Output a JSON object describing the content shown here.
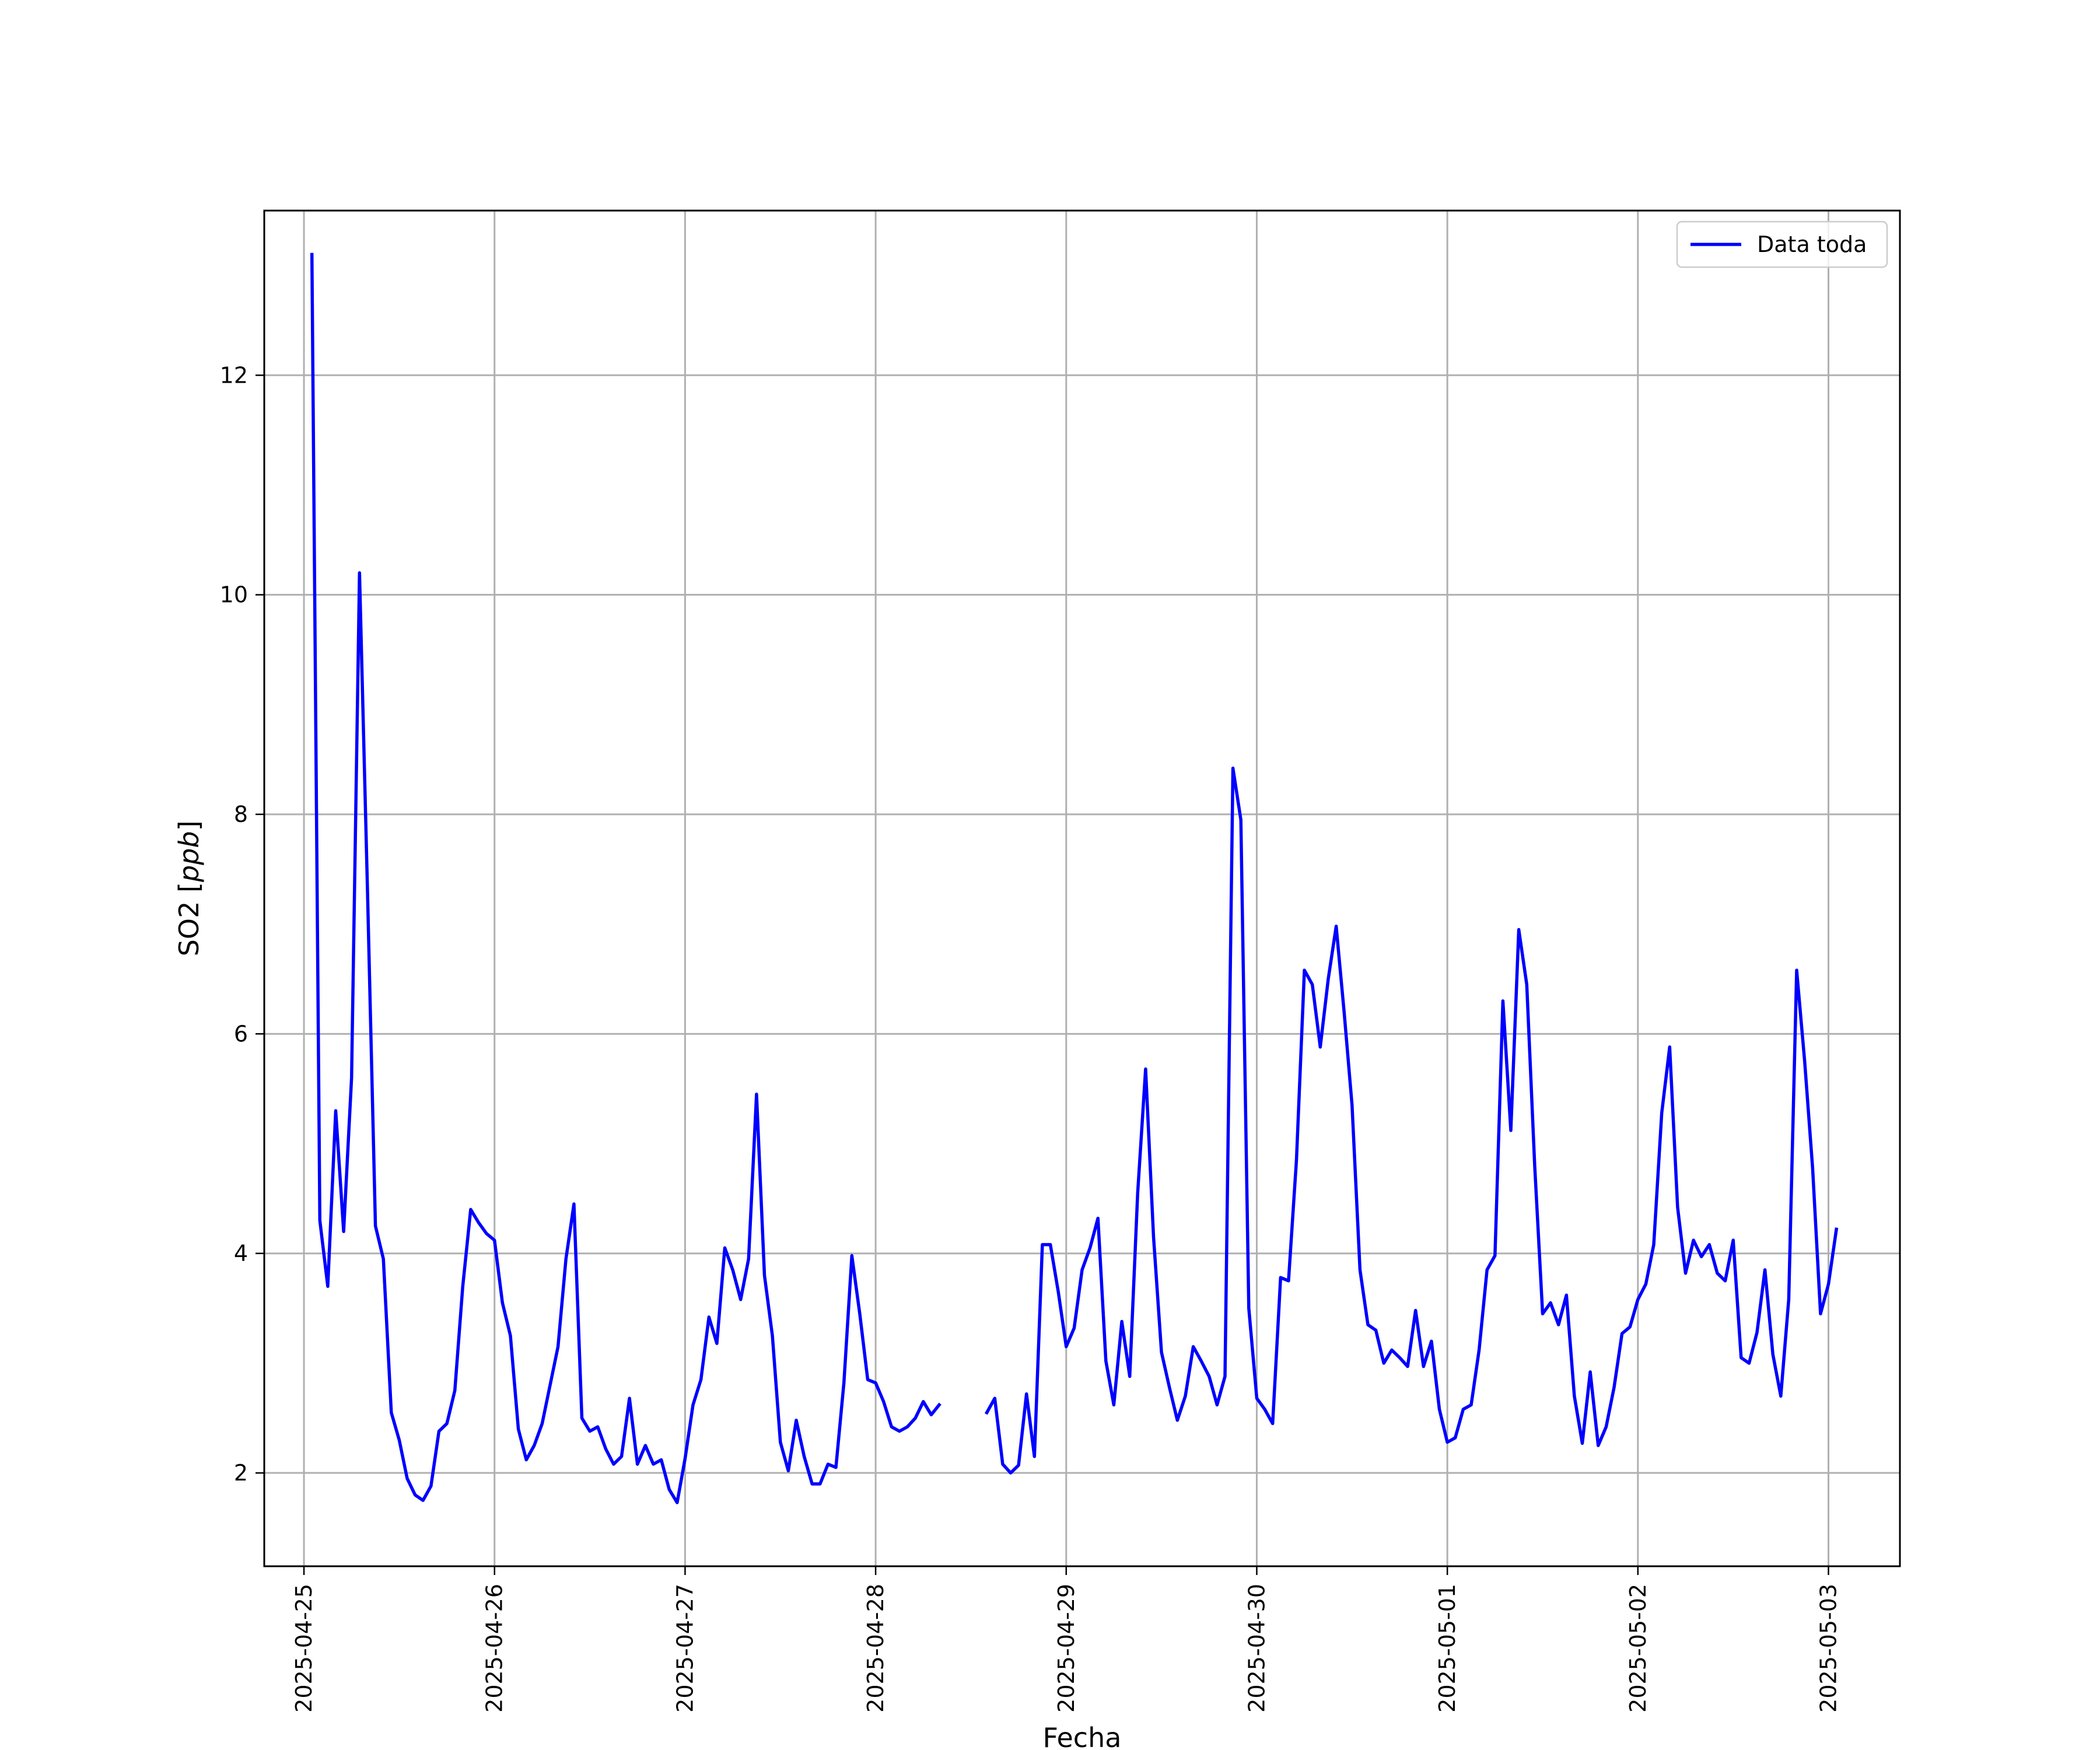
{
  "chart_data": {
    "type": "line",
    "title": "",
    "xlabel": "Fecha",
    "ylabel": "SO2 [ppb]",
    "ylabel_parts": {
      "plain": "SO2 [",
      "italic": "ppb",
      "close": "]"
    },
    "xlim": [
      "2025-04-24T19:00",
      "2025-05-03T09:00"
    ],
    "ylim": [
      1.15,
      13.5
    ],
    "x_ticks": [
      "2025-04-25",
      "2025-04-26",
      "2025-04-27",
      "2025-04-28",
      "2025-04-29",
      "2025-04-30",
      "2025-05-01",
      "2025-05-02",
      "2025-05-03"
    ],
    "y_ticks": [
      2,
      4,
      6,
      8,
      10,
      12
    ],
    "y_tick_labels": [
      "2",
      "4",
      "6",
      "8",
      "10",
      "12"
    ],
    "grid": true,
    "legend": {
      "position": "top-right"
    },
    "series": [
      {
        "name": "Data toda",
        "color": "#0000ff",
        "start": "2025-04-25T01:00",
        "interval_hours": 1,
        "values": [
          13.1,
          4.3,
          3.7,
          5.3,
          4.2,
          5.6,
          10.2,
          7.3,
          4.25,
          3.95,
          2.55,
          2.3,
          1.95,
          1.8,
          1.75,
          1.88,
          2.38,
          2.45,
          2.75,
          3.7,
          4.4,
          4.28,
          4.18,
          4.12,
          3.55,
          3.25,
          2.4,
          2.12,
          2.25,
          2.45,
          2.8,
          3.15,
          3.95,
          4.45,
          2.5,
          2.38,
          2.42,
          2.22,
          2.08,
          2.15,
          2.68,
          2.08,
          2.25,
          2.08,
          2.12,
          1.85,
          1.73,
          2.13,
          2.62,
          2.85,
          3.42,
          3.18,
          4.05,
          3.85,
          3.58,
          3.95,
          5.45,
          3.8,
          3.25,
          2.28,
          2.02,
          2.48,
          2.15,
          1.9,
          1.9,
          2.08,
          2.05,
          2.82,
          3.98,
          3.45,
          2.85,
          2.82,
          2.65,
          2.42,
          2.38,
          2.42,
          2.5,
          2.65,
          2.53,
          2.62,
          null,
          null,
          null,
          null,
          null,
          2.55,
          2.68,
          2.08,
          2.0,
          2.07,
          2.72,
          2.15,
          4.08,
          4.08,
          3.65,
          3.15,
          3.32,
          3.85,
          4.05,
          4.32,
          3.02,
          2.62,
          3.38,
          2.88,
          4.55,
          5.68,
          4.15,
          3.1,
          2.78,
          2.48,
          2.7,
          3.15,
          3.02,
          2.88,
          2.62,
          2.88,
          8.42,
          7.95,
          3.5,
          2.68,
          2.58,
          2.45,
          3.78,
          3.75,
          4.85,
          6.58,
          6.45,
          5.88,
          6.5,
          6.98,
          6.2,
          5.35,
          3.85,
          3.35,
          3.3,
          3.0,
          3.12,
          3.05,
          2.97,
          3.48,
          2.97,
          3.2,
          2.58,
          2.28,
          2.32,
          2.58,
          2.62,
          3.12,
          3.85,
          3.98,
          6.3,
          5.12,
          6.95,
          6.45,
          4.8,
          3.45,
          3.55,
          3.35,
          3.62,
          2.7,
          2.27,
          2.92,
          2.25,
          2.42,
          2.78,
          3.27,
          3.33,
          3.58,
          3.72,
          4.08,
          5.28,
          5.88,
          4.42,
          3.82,
          4.12,
          3.97,
          4.08,
          3.82,
          3.75,
          4.12,
          3.05,
          3.0,
          3.28,
          3.85,
          3.08,
          2.7,
          3.58,
          6.58,
          5.75,
          4.78,
          3.45,
          3.72,
          4.22
        ]
      }
    ]
  }
}
